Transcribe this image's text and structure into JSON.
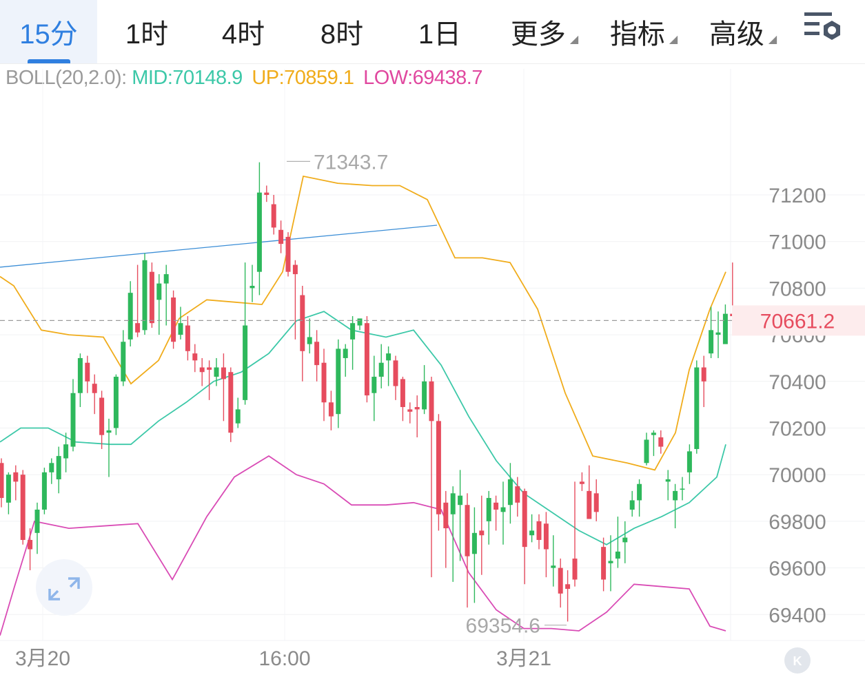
{
  "tabs": [
    {
      "label": "15分",
      "active": true
    },
    {
      "label": "1时",
      "active": false
    },
    {
      "label": "4时",
      "active": false
    },
    {
      "label": "8时",
      "active": false
    },
    {
      "label": "1日",
      "active": false
    },
    {
      "label": "更多",
      "active": false,
      "dropdown": true
    },
    {
      "label": "指标",
      "active": false,
      "dropdown": true
    },
    {
      "label": "高级",
      "active": false,
      "dropdown": true
    }
  ],
  "settings_icon": "chart-settings-icon",
  "indicator": {
    "name": "BOLL(20,2.0):",
    "mid": "MID:70148.9",
    "up": "UP:70859.1",
    "low": "LOW:69438.7",
    "colors": {
      "name": "#9a9a9a",
      "mid": "#3cc8a8",
      "up": "#f0ac1b",
      "low": "#e0489f"
    }
  },
  "colors": {
    "up": "#2eb85c",
    "down": "#e64c5e",
    "mid": "#3cc8a8",
    "upper": "#f0ac1b",
    "lower": "#d94bb5",
    "trend": "#3a8dd6",
    "accent": "#2f7fe0"
  },
  "current_price": "70661.2",
  "high_marker": "71343.7",
  "low_marker": "69354.6",
  "time_labels": [
    "3月20",
    "16:00",
    "3月21"
  ],
  "chart_data": {
    "type": "candlestick",
    "interval": "15分",
    "y_ticks": [
      71200,
      71000,
      70800,
      70600,
      70400,
      70200,
      70000,
      69800,
      69600,
      69400
    ],
    "current_price": 70661.2,
    "annotations": [
      {
        "label": "71343.7",
        "value": 71343.7
      },
      {
        "label": "69354.6",
        "value": 69354.6
      }
    ],
    "candles": [
      [
        70050,
        69900,
        70070,
        69860
      ],
      [
        69880,
        70000,
        70010,
        69830
      ],
      [
        70010,
        69970,
        70040,
        69890
      ],
      [
        70000,
        69720,
        70020,
        69700
      ],
      [
        69720,
        69680,
        69770,
        69590
      ],
      [
        69750,
        69850,
        69880,
        69660
      ],
      [
        69850,
        70010,
        70030,
        69830
      ],
      [
        70010,
        70050,
        70070,
        69960
      ],
      [
        69980,
        70080,
        70120,
        69920
      ],
      [
        70070,
        70130,
        70180,
        70010
      ],
      [
        70120,
        70350,
        70410,
        70100
      ],
      [
        70350,
        70500,
        70520,
        70290
      ],
      [
        70480,
        70400,
        70510,
        70350
      ],
      [
        70390,
        70350,
        70430,
        70260
      ],
      [
        70330,
        70170,
        70360,
        70110
      ],
      [
        70180,
        70190,
        70240,
        69990
      ],
      [
        70200,
        70420,
        70430,
        70170
      ],
      [
        70400,
        70570,
        70620,
        70380
      ],
      [
        70580,
        70780,
        70830,
        70550
      ],
      [
        70650,
        70610,
        70900,
        70590
      ],
      [
        70620,
        70920,
        70950,
        70600
      ],
      [
        70870,
        70650,
        70910,
        70630
      ],
      [
        70750,
        70820,
        70860,
        70600
      ],
      [
        70820,
        70860,
        70900,
        70640
      ],
      [
        70760,
        70570,
        70790,
        70540
      ],
      [
        70600,
        70650,
        70720,
        70580
      ],
      [
        70640,
        70530,
        70680,
        70490
      ],
      [
        70520,
        70490,
        70560,
        70440
      ],
      [
        70460,
        70440,
        70500,
        70380
      ],
      [
        70460,
        70450,
        70490,
        70320
      ],
      [
        70420,
        70460,
        70500,
        70380
      ],
      [
        70460,
        70410,
        70520,
        70230
      ],
      [
        70440,
        70180,
        70460,
        70140
      ],
      [
        70220,
        70280,
        70330,
        70200
      ],
      [
        70320,
        70640,
        70910,
        70300
      ],
      [
        70800,
        70810,
        70900,
        70740
      ],
      [
        70870,
        71210,
        71340,
        70770
      ],
      [
        71210,
        71200,
        71240,
        71170
      ],
      [
        71160,
        71060,
        71200,
        71030
      ],
      [
        71050,
        70990,
        71090,
        70950
      ],
      [
        71020,
        70870,
        71040,
        70850
      ],
      [
        70900,
        70860,
        70920,
        70580
      ],
      [
        70770,
        70530,
        70810,
        70400
      ],
      [
        70560,
        70590,
        70670,
        70520
      ],
      [
        70570,
        70470,
        70620,
        70400
      ],
      [
        70480,
        70310,
        70540,
        70230
      ],
      [
        70310,
        70250,
        70360,
        70190
      ],
      [
        70260,
        70540,
        70580,
        70200
      ],
      [
        70500,
        70540,
        70560,
        70420
      ],
      [
        70580,
        70650,
        70680,
        70450
      ],
      [
        70640,
        70670,
        70660,
        70620
      ],
      [
        70650,
        70340,
        70680,
        70310
      ],
      [
        70350,
        70420,
        70510,
        70230
      ],
      [
        70420,
        70480,
        70560,
        70370
      ],
      [
        70490,
        70520,
        70550,
        70380
      ],
      [
        70490,
        70380,
        70510,
        70320
      ],
      [
        70410,
        70290,
        70420,
        70230
      ],
      [
        70280,
        70270,
        70310,
        70220
      ],
      [
        70290,
        70280,
        70340,
        70160
      ],
      [
        70280,
        70400,
        70470,
        70260
      ],
      [
        70400,
        70230,
        70420,
        69560
      ],
      [
        70230,
        69830,
        70260,
        69760
      ],
      [
        69880,
        69770,
        69930,
        69600
      ],
      [
        69830,
        69920,
        69950,
        69540
      ],
      [
        69870,
        69910,
        70020,
        69630
      ],
      [
        69870,
        69650,
        69920,
        69430
      ],
      [
        69660,
        69750,
        69860,
        69450
      ],
      [
        69760,
        69740,
        69910,
        69570
      ],
      [
        69800,
        69900,
        69930,
        69700
      ],
      [
        69880,
        69850,
        69910,
        69760
      ],
      [
        69840,
        69860,
        69970,
        69700
      ],
      [
        69870,
        69980,
        70050,
        69790
      ],
      [
        69950,
        69880,
        69990,
        69820
      ],
      [
        69930,
        69690,
        69940,
        69530
      ],
      [
        69740,
        69760,
        69830,
        69710
      ],
      [
        69800,
        69720,
        69830,
        69680
      ],
      [
        69790,
        69680,
        69840,
        69560
      ],
      [
        69600,
        69610,
        69740,
        69520
      ],
      [
        69600,
        69490,
        69640,
        69430
      ],
      [
        69530,
        69510,
        69590,
        69370
      ],
      [
        69640,
        69550,
        69970,
        69520
      ],
      [
        69970,
        69960,
        70010,
        69930
      ],
      [
        69930,
        69810,
        70040,
        69870
      ],
      [
        69920,
        69840,
        69980,
        69800
      ],
      [
        69690,
        69550,
        69730,
        69500
      ],
      [
        69620,
        69630,
        69740,
        69500
      ],
      [
        69640,
        69670,
        69820,
        69600
      ],
      [
        69710,
        69730,
        69800,
        69620
      ],
      [
        69850,
        69890,
        69930,
        69820
      ],
      [
        69890,
        69960,
        69980,
        69820
      ],
      [
        70050,
        70150,
        70180,
        70040
      ],
      [
        70170,
        70180,
        70190,
        70080
      ],
      [
        70160,
        70120,
        70190,
        70090
      ],
      [
        69970,
        69980,
        70020,
        69890
      ],
      [
        69890,
        69930,
        69960,
        69770
      ],
      [
        69940,
        69940,
        69990,
        69890
      ],
      [
        70010,
        70100,
        70130,
        69960
      ],
      [
        70110,
        70460,
        70490,
        70090
      ],
      [
        70460,
        70400,
        70510,
        70290
      ],
      [
        70520,
        70620,
        70720,
        70500
      ],
      [
        70600,
        70610,
        70700,
        70500
      ],
      [
        70560,
        70690,
        70730,
        70590
      ],
      [
        70690,
        70680,
        70910,
        70620
      ]
    ],
    "series": [
      {
        "name": "MID",
        "color": "#3cc8a8",
        "values": [
          [
            0,
            70140
          ],
          [
            30,
            70200
          ],
          [
            70,
            70200
          ],
          [
            110,
            70140
          ],
          [
            160,
            70130
          ],
          [
            190,
            70130
          ],
          [
            230,
            70230
          ],
          [
            270,
            70310
          ],
          [
            310,
            70400
          ],
          [
            350,
            70440
          ],
          [
            390,
            70520
          ],
          [
            430,
            70660
          ],
          [
            470,
            70700
          ],
          [
            510,
            70620
          ],
          [
            560,
            70590
          ],
          [
            600,
            70620
          ],
          [
            640,
            70470
          ],
          [
            680,
            70250
          ],
          [
            720,
            70060
          ],
          [
            760,
            69920
          ],
          [
            800,
            69840
          ],
          [
            840,
            69760
          ],
          [
            880,
            69700
          ],
          [
            920,
            69770
          ],
          [
            960,
            69820
          ],
          [
            1000,
            69880
          ],
          [
            1040,
            69990
          ],
          [
            1053,
            70130
          ]
        ]
      },
      {
        "name": "UP",
        "color": "#f0ac1b",
        "values": [
          [
            0,
            70850
          ],
          [
            20,
            70810
          ],
          [
            60,
            70620
          ],
          [
            100,
            70600
          ],
          [
            150,
            70590
          ],
          [
            190,
            70390
          ],
          [
            230,
            70490
          ],
          [
            260,
            70670
          ],
          [
            300,
            70750
          ],
          [
            340,
            70740
          ],
          [
            380,
            70730
          ],
          [
            410,
            70870
          ],
          [
            440,
            71280
          ],
          [
            490,
            71250
          ],
          [
            540,
            71240
          ],
          [
            580,
            71240
          ],
          [
            620,
            71180
          ],
          [
            660,
            70930
          ],
          [
            700,
            70930
          ],
          [
            740,
            70910
          ],
          [
            780,
            70710
          ],
          [
            820,
            70350
          ],
          [
            860,
            70080
          ],
          [
            910,
            70050
          ],
          [
            950,
            70020
          ],
          [
            980,
            70180
          ],
          [
            1000,
            70450
          ],
          [
            1030,
            70710
          ],
          [
            1053,
            70870
          ]
        ]
      },
      {
        "name": "LOW",
        "color": "#d94bb5",
        "values": [
          [
            0,
            69310
          ],
          [
            20,
            69510
          ],
          [
            50,
            69800
          ],
          [
            100,
            69770
          ],
          [
            150,
            69780
          ],
          [
            200,
            69790
          ],
          [
            250,
            69550
          ],
          [
            300,
            69820
          ],
          [
            340,
            69990
          ],
          [
            390,
            70080
          ],
          [
            430,
            70000
          ],
          [
            470,
            69960
          ],
          [
            510,
            69870
          ],
          [
            560,
            69870
          ],
          [
            600,
            69880
          ],
          [
            640,
            69850
          ],
          [
            680,
            69580
          ],
          [
            720,
            69420
          ],
          [
            760,
            69340
          ],
          [
            800,
            69340
          ],
          [
            840,
            69330
          ],
          [
            880,
            69410
          ],
          [
            920,
            69530
          ],
          [
            960,
            69520
          ],
          [
            1000,
            69510
          ],
          [
            1030,
            69350
          ],
          [
            1053,
            69330
          ]
        ]
      }
    ],
    "trendline": [
      [
        0,
        70890
      ],
      [
        634,
        71070
      ]
    ]
  }
}
